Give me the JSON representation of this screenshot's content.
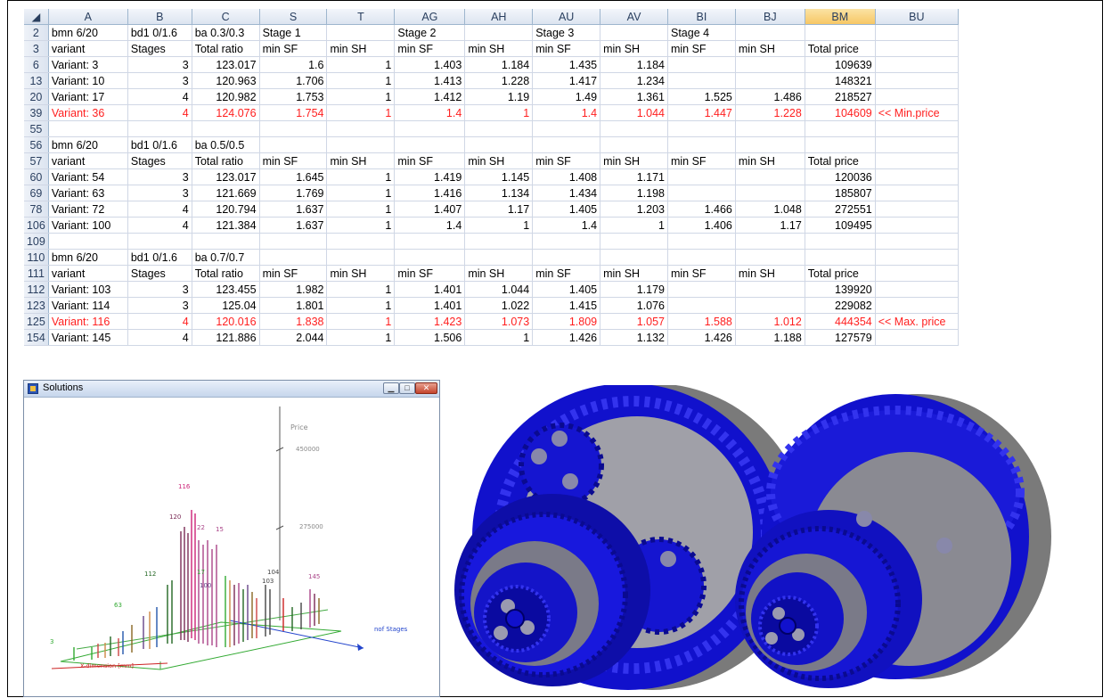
{
  "spreadsheet": {
    "columns": [
      "A",
      "B",
      "C",
      "S",
      "T",
      "AG",
      "AH",
      "AU",
      "AV",
      "BI",
      "BJ",
      "BM",
      "BU"
    ],
    "selected_column": "BM",
    "rows": [
      {
        "rh": "2",
        "cells": [
          "bmn 6/20",
          "bd1 0/1.6",
          "ba 0.3/0.3",
          "Stage 1",
          "",
          "Stage 2",
          "",
          "Stage 3",
          "",
          "Stage 4",
          "",
          "",
          ""
        ]
      },
      {
        "rh": "3",
        "cells": [
          "variant",
          "Stages",
          "Total ratio",
          "min SF",
          "min SH",
          "min SF",
          "min SH",
          "min SF",
          "min SH",
          "min SF",
          "min SH",
          "Total price",
          ""
        ]
      },
      {
        "rh": "6",
        "cells": [
          "Variant: 3",
          "3",
          "123.017",
          "1.6",
          "1",
          "1.403",
          "1.184",
          "1.435",
          "1.184",
          "",
          "",
          "109639",
          ""
        ]
      },
      {
        "rh": "13",
        "cells": [
          "Variant: 10",
          "3",
          "120.963",
          "1.706",
          "1",
          "1.413",
          "1.228",
          "1.417",
          "1.234",
          "",
          "",
          "148321",
          ""
        ]
      },
      {
        "rh": "20",
        "cells": [
          "Variant: 17",
          "4",
          "120.982",
          "1.753",
          "1",
          "1.412",
          "1.19",
          "1.49",
          "1.361",
          "1.525",
          "1.486",
          "218527",
          ""
        ]
      },
      {
        "rh": "39",
        "red": true,
        "cells": [
          "Variant: 36",
          "4",
          "124.076",
          "1.754",
          "1",
          "1.4",
          "1",
          "1.4",
          "1.044",
          "1.447",
          "1.228",
          "104609",
          "<< Min.price"
        ]
      },
      {
        "rh": "55",
        "cells": [
          "",
          "",
          "",
          "",
          "",
          "",
          "",
          "",
          "",
          "",
          "",
          "",
          ""
        ]
      },
      {
        "rh": "56",
        "cells": [
          "bmn 6/20",
          "bd1 0/1.6",
          "ba 0.5/0.5",
          "",
          "",
          "",
          "",
          "",
          "",
          "",
          "",
          "",
          ""
        ]
      },
      {
        "rh": "57",
        "cells": [
          "variant",
          "Stages",
          "Total ratio",
          "min SF",
          "min SH",
          "min SF",
          "min SH",
          "min SF",
          "min SH",
          "min SF",
          "min SH",
          "Total price",
          ""
        ]
      },
      {
        "rh": "60",
        "cells": [
          "Variant: 54",
          "3",
          "123.017",
          "1.645",
          "1",
          "1.419",
          "1.145",
          "1.408",
          "1.171",
          "",
          "",
          "120036",
          ""
        ]
      },
      {
        "rh": "69",
        "cells": [
          "Variant: 63",
          "3",
          "121.669",
          "1.769",
          "1",
          "1.416",
          "1.134",
          "1.434",
          "1.198",
          "",
          "",
          "185807",
          ""
        ]
      },
      {
        "rh": "78",
        "cells": [
          "Variant: 72",
          "4",
          "120.794",
          "1.637",
          "1",
          "1.407",
          "1.17",
          "1.405",
          "1.203",
          "1.466",
          "1.048",
          "272551",
          ""
        ]
      },
      {
        "rh": "106",
        "cells": [
          "Variant: 100",
          "4",
          "121.384",
          "1.637",
          "1",
          "1.4",
          "1",
          "1.4",
          "1",
          "1.406",
          "1.17",
          "109495",
          ""
        ]
      },
      {
        "rh": "109",
        "cells": [
          "",
          "",
          "",
          "",
          "",
          "",
          "",
          "",
          "",
          "",
          "",
          "",
          ""
        ]
      },
      {
        "rh": "110",
        "cells": [
          "bmn 6/20",
          "bd1 0/1.6",
          "ba 0.7/0.7",
          "",
          "",
          "",
          "",
          "",
          "",
          "",
          "",
          "",
          ""
        ]
      },
      {
        "rh": "111",
        "cells": [
          "variant",
          "Stages",
          "Total ratio",
          "min SF",
          "min SH",
          "min SF",
          "min SH",
          "min SF",
          "min SH",
          "min SF",
          "min SH",
          "Total price",
          ""
        ]
      },
      {
        "rh": "112",
        "cells": [
          "Variant: 103",
          "3",
          "123.455",
          "1.982",
          "1",
          "1.401",
          "1.044",
          "1.405",
          "1.179",
          "",
          "",
          "139920",
          ""
        ]
      },
      {
        "rh": "123",
        "cells": [
          "Variant: 114",
          "3",
          "125.04",
          "1.801",
          "1",
          "1.401",
          "1.022",
          "1.415",
          "1.076",
          "",
          "",
          "229082",
          ""
        ]
      },
      {
        "rh": "125",
        "red": true,
        "cells": [
          "Variant: 116",
          "4",
          "120.016",
          "1.838",
          "1",
          "1.423",
          "1.073",
          "1.809",
          "1.057",
          "1.588",
          "1.012",
          "444354",
          "<< Max. price"
        ]
      },
      {
        "rh": "154",
        "cells": [
          "Variant: 145",
          "4",
          "121.886",
          "2.044",
          "1",
          "1.506",
          "1",
          "1.426",
          "1.132",
          "1.426",
          "1.188",
          "127579",
          ""
        ]
      }
    ]
  },
  "solutions_window": {
    "title": "Solutions",
    "axis_labels": {
      "price": "Price",
      "stages": "nof Stages",
      "x": "X-dimension [mm]"
    },
    "price_ticks": [
      "450000",
      "275000"
    ],
    "bar_labels": [
      "116",
      "120",
      "15",
      "22",
      "112",
      "17",
      "104",
      "103",
      "145",
      "3",
      "63",
      "100"
    ]
  },
  "gearboxes": {
    "color": "#1010cc",
    "shadow": "#8a8a8a"
  }
}
